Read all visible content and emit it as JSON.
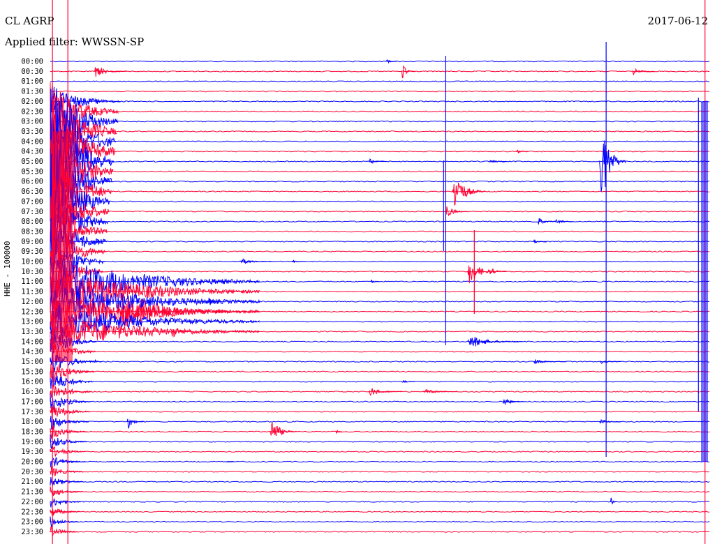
{
  "header": {
    "station": "CL AGRP",
    "filter": "Applied filter: WWSSN-SP",
    "date": "2017-06-12"
  },
  "chart_data": {
    "type": "helicorder",
    "title": "CL AGRP",
    "subtitle": "Applied filter: WWSSN-SP",
    "date": "2017-06-12",
    "ylabel": "HHE - 100000",
    "row_labels": [
      "00:00",
      "00:30",
      "01:00",
      "01:30",
      "02:00",
      "02:30",
      "03:00",
      "03:30",
      "04:00",
      "04:30",
      "05:00",
      "05:30",
      "06:00",
      "06:30",
      "07:00",
      "07:30",
      "08:00",
      "08:30",
      "09:00",
      "09:30",
      "10:00",
      "10:30",
      "11:00",
      "11:30",
      "12:00",
      "12:30",
      "13:00",
      "13:30",
      "14:00",
      "14:30",
      "15:00",
      "15:30",
      "16:00",
      "16:30",
      "17:00",
      "17:30",
      "18:00",
      "18:30",
      "19:00",
      "19:30",
      "20:00",
      "20:30",
      "21:00",
      "21:30",
      "22:00",
      "22:30",
      "23:00",
      "23:30"
    ],
    "colors": [
      "#0000ff",
      "#ff0033"
    ],
    "rows": 48,
    "minutes_per_row": 30,
    "events": [
      {
        "row": 1,
        "minute": 2.0,
        "amp": 10,
        "dur": 1.5
      },
      {
        "row": 1,
        "minute": 16.0,
        "amp": 14,
        "dur": 0.6
      },
      {
        "row": 1,
        "minute": 26.5,
        "amp": 6,
        "dur": 1.0
      },
      {
        "row": 0,
        "minute": 15.3,
        "amp": 4,
        "dur": 0.5
      },
      {
        "row": 9,
        "minute": 21.2,
        "amp": 4,
        "dur": 0.6
      },
      {
        "row": 10,
        "minute": 14.5,
        "amp": 5,
        "dur": 0.8
      },
      {
        "row": 10,
        "minute": 20.0,
        "amp": 4,
        "dur": 0.8
      },
      {
        "row": 10,
        "minute": 25.0,
        "amp": 90,
        "dur": 1.2
      },
      {
        "row": 13,
        "minute": 18.3,
        "amp": 40,
        "dur": 1.5
      },
      {
        "row": 15,
        "minute": 18.0,
        "amp": 12,
        "dur": 1.0
      },
      {
        "row": 16,
        "minute": 22.2,
        "amp": 8,
        "dur": 0.8
      },
      {
        "row": 16,
        "minute": 23.0,
        "amp": 5,
        "dur": 0.8
      },
      {
        "row": 18,
        "minute": 2.0,
        "amp": 8,
        "dur": 0.6
      },
      {
        "row": 18,
        "minute": 22.0,
        "amp": 4,
        "dur": 0.6
      },
      {
        "row": 20,
        "minute": 8.6,
        "amp": 6,
        "dur": 1.5
      },
      {
        "row": 20,
        "minute": 11.0,
        "amp": 4,
        "dur": 0.5
      },
      {
        "row": 21,
        "minute": 19.0,
        "amp": 25,
        "dur": 1.5
      },
      {
        "row": 21,
        "minute": 20.0,
        "amp": 8,
        "dur": 0.8
      },
      {
        "row": 22,
        "minute": 14.6,
        "amp": 5,
        "dur": 0.4
      },
      {
        "row": 24,
        "minute": 7.2,
        "amp": 10,
        "dur": 0.6
      },
      {
        "row": 25,
        "minute": 3.0,
        "amp": 40,
        "dur": 6.0
      },
      {
        "row": 27,
        "minute": 5.5,
        "amp": 16,
        "dur": 0.8
      },
      {
        "row": 28,
        "minute": 19.0,
        "amp": 12,
        "dur": 2.5
      },
      {
        "row": 30,
        "minute": 2.0,
        "amp": 5,
        "dur": 0.4
      },
      {
        "row": 30,
        "minute": 22.0,
        "amp": 4,
        "dur": 1.5
      },
      {
        "row": 30,
        "minute": 25.0,
        "amp": 4,
        "dur": 1.0
      },
      {
        "row": 32,
        "minute": 16.0,
        "amp": 3,
        "dur": 0.6
      },
      {
        "row": 33,
        "minute": 14.5,
        "amp": 8,
        "dur": 1.5
      },
      {
        "row": 33,
        "minute": 17.0,
        "amp": 5,
        "dur": 1.5
      },
      {
        "row": 34,
        "minute": 20.6,
        "amp": 7,
        "dur": 1.0
      },
      {
        "row": 36,
        "minute": 3.5,
        "amp": 14,
        "dur": 0.8
      },
      {
        "row": 36,
        "minute": 25.0,
        "amp": 5,
        "dur": 1.0
      },
      {
        "row": 37,
        "minute": 10.0,
        "amp": 26,
        "dur": 1.2
      },
      {
        "row": 37,
        "minute": 13.0,
        "amp": 4,
        "dur": 0.3
      },
      {
        "row": 40,
        "minute": 8.0,
        "amp": 3,
        "dur": 0.4
      },
      {
        "row": 44,
        "minute": 25.5,
        "amp": 8,
        "dur": 0.3
      }
    ],
    "spikes": [
      {
        "minute": 18.0,
        "top": 80,
        "bottom": 495,
        "color": "#0000ff"
      },
      {
        "minute": 25.3,
        "top": 60,
        "bottom": 655,
        "color": "#0000ff"
      },
      {
        "minute": 17.9,
        "top": 230,
        "bottom": 360,
        "color": "#0000ff"
      },
      {
        "minute": 19.3,
        "top": 330,
        "bottom": 450,
        "color": "#ff0033"
      },
      {
        "minute": 29.5,
        "top": 140,
        "bottom": 590,
        "color": "#0000ff"
      },
      {
        "minute": 0.1,
        "top": 0,
        "bottom": 780,
        "color": "#ff0033"
      },
      {
        "minute": 0.8,
        "top": 0,
        "bottom": 780,
        "color": "#ff0033"
      },
      {
        "minute": 29.8,
        "top": 0,
        "bottom": 780,
        "color": "#ff0033"
      }
    ],
    "quake": {
      "minute": 0.3,
      "row_start": 4,
      "row_end": 47,
      "peak": 180
    }
  }
}
